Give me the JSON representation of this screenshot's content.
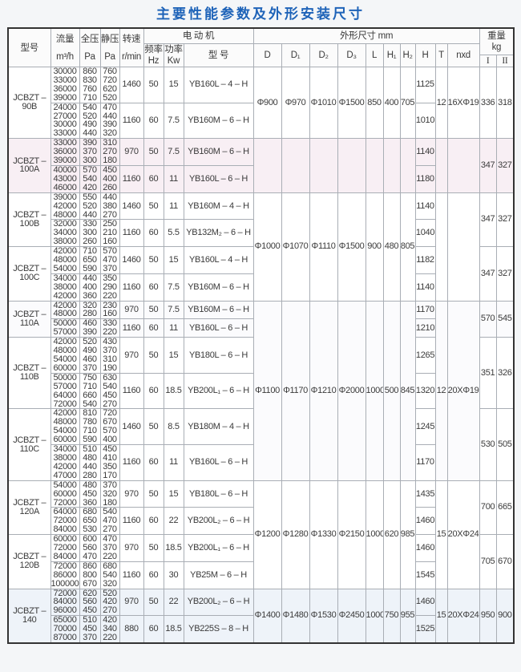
{
  "title": "主要性能参数及外形安装尺寸",
  "header": {
    "model": "型号",
    "flow": "流量",
    "flow_unit": "m³/h",
    "total_pressure": "全压",
    "static_pressure": "静压",
    "pa": "Pa",
    "speed": "转速",
    "speed_unit": "r/min",
    "motor": "电 动 机",
    "freq": "频率",
    "hz": "Hz",
    "power": "功率",
    "kw": "Kw",
    "motor_model": "型  号",
    "dims": "外形尺寸  mm",
    "D": "D",
    "D1": "D₁",
    "D2": "D₂",
    "D3": "D₃",
    "L": "L",
    "H1": "H₁",
    "H2": "H₂",
    "H": "H",
    "T": "T",
    "nxd": "nxd",
    "weight": "重量",
    "kg": "kg",
    "w1": "I",
    "w2": "II"
  },
  "models": [
    {
      "id": "90B",
      "line1": "JCBZT –",
      "line2": "90B",
      "weight": [
        "336",
        "318"
      ],
      "tint": "#ffffff",
      "groups": [
        {
          "flow": [
            "30000",
            "33000",
            "36000",
            "39000"
          ],
          "total": [
            "860",
            "830",
            "760",
            "710"
          ],
          "static": [
            "760",
            "720",
            "620",
            "520"
          ],
          "speed": "1460",
          "hz": "50",
          "kw": "15",
          "motor": "YB160L – 4 – H",
          "H": "1125"
        },
        {
          "flow": [
            "24000",
            "27000",
            "30000",
            "33000"
          ],
          "total": [
            "540",
            "520",
            "490",
            "440"
          ],
          "static": [
            "470",
            "440",
            "390",
            "320"
          ],
          "speed": "1160",
          "hz": "60",
          "kw": "7.5",
          "motor": "YB160M – 6 – H",
          "H": "1010"
        }
      ]
    },
    {
      "id": "100A",
      "line1": "JCBZT –",
      "line2": "100A",
      "weight": [
        "347",
        "327"
      ],
      "tint": "#f8eff4",
      "groups": [
        {
          "flow": [
            "33000",
            "36000",
            "39000"
          ],
          "total": [
            "390",
            "370",
            "300"
          ],
          "static": [
            "310",
            "270",
            "180"
          ],
          "speed": "970",
          "hz": "50",
          "kw": "7.5",
          "motor": "YB160M – 6 – H",
          "H": "1140"
        },
        {
          "flow": [
            "40000",
            "43000",
            "46000"
          ],
          "total": [
            "570",
            "540",
            "420"
          ],
          "static": [
            "450",
            "400",
            "260"
          ],
          "speed": "1160",
          "hz": "60",
          "kw": "11",
          "motor": "YB160L – 6 – H",
          "H": "1180"
        }
      ]
    },
    {
      "id": "100B",
      "line1": "JCBZT –",
      "line2": "100B",
      "weight": [
        "347",
        "327"
      ],
      "tint": "#ffffff",
      "groups": [
        {
          "flow": [
            "39000",
            "42000",
            "48000"
          ],
          "total": [
            "550",
            "520",
            "440"
          ],
          "static": [
            "440",
            "380",
            "270"
          ],
          "speed": "1460",
          "hz": "50",
          "kw": "11",
          "motor": "YB160M – 4 – H",
          "H": "1140"
        },
        {
          "flow": [
            "32000",
            "34000",
            "38000"
          ],
          "total": [
            "330",
            "300",
            "260"
          ],
          "static": [
            "250",
            "210",
            "160"
          ],
          "speed": "1160",
          "hz": "60",
          "kw": "5.5",
          "motor": "YB132M₂ – 6 – H",
          "H": "1040"
        }
      ]
    },
    {
      "id": "100C",
      "line1": "JCBZT –",
      "line2": "100C",
      "weight": [
        "347",
        "327"
      ],
      "tint": "#ffffff",
      "groups": [
        {
          "flow": [
            "42000",
            "48000",
            "54000"
          ],
          "total": [
            "710",
            "650",
            "590"
          ],
          "static": [
            "570",
            "470",
            "370"
          ],
          "speed": "1460",
          "hz": "50",
          "kw": "15",
          "motor": "YB160L – 4 – H",
          "H": "1182"
        },
        {
          "flow": [
            "34000",
            "38000",
            "42000"
          ],
          "total": [
            "440",
            "400",
            "360"
          ],
          "static": [
            "350",
            "290",
            "220"
          ],
          "speed": "1160",
          "hz": "60",
          "kw": "7.5",
          "motor": "YB160M – 6 – H",
          "H": "1140"
        }
      ]
    },
    {
      "id": "110A",
      "line1": "JCBZT –",
      "line2": "110A",
      "weight": [
        "570",
        "545"
      ],
      "tint": "#fbfbfd",
      "groups": [
        {
          "flow": [
            "42000",
            "48000"
          ],
          "total": [
            "320",
            "280"
          ],
          "static": [
            "230",
            "160"
          ],
          "speed": "970",
          "hz": "50",
          "kw": "7.5",
          "motor": "YB160M – 6 – H",
          "H": "1170"
        },
        {
          "flow": [
            "50000",
            "57000"
          ],
          "total": [
            "460",
            "390"
          ],
          "static": [
            "330",
            "220"
          ],
          "speed": "1160",
          "hz": "60",
          "kw": "11",
          "motor": "YB160L – 6 – H",
          "H": "1210"
        }
      ]
    },
    {
      "id": "110B",
      "line1": "JCBZT –",
      "line2": "110B",
      "weight": [
        "351",
        "326"
      ],
      "tint": "#ffffff",
      "groups": [
        {
          "flow": [
            "42000",
            "48000",
            "54000",
            "60000"
          ],
          "total": [
            "520",
            "490",
            "460",
            "370"
          ],
          "static": [
            "430",
            "370",
            "310",
            "190"
          ],
          "speed": "970",
          "hz": "50",
          "kw": "15",
          "motor": "YB180L – 6 – H",
          "H": "1265"
        },
        {
          "flow": [
            "50000",
            "57000",
            "64000",
            "72000"
          ],
          "total": [
            "750",
            "710",
            "660",
            "540"
          ],
          "static": [
            "630",
            "540",
            "450",
            "270"
          ],
          "speed": "1160",
          "hz": "60",
          "kw": "18.5",
          "motor": "YB200L₁ – 6 – H",
          "H": "1320"
        }
      ]
    },
    {
      "id": "110C",
      "line1": "JCBZT –",
      "line2": "110C",
      "weight": [
        "530",
        "505"
      ],
      "tint": "#ffffff",
      "groups": [
        {
          "flow": [
            "42000",
            "48000",
            "54000",
            "60000"
          ],
          "total": [
            "810",
            "780",
            "710",
            "590"
          ],
          "static": [
            "720",
            "670",
            "570",
            "400"
          ],
          "speed": "1460",
          "hz": "50",
          "kw": "8.5",
          "motor": "YB180M – 4 – H",
          "H": "1245"
        },
        {
          "flow": [
            "34000",
            "38000",
            "42000",
            "47000"
          ],
          "total": [
            "510",
            "480",
            "440",
            "280"
          ],
          "static": [
            "450",
            "410",
            "350",
            "170"
          ],
          "speed": "1160",
          "hz": "60",
          "kw": "11",
          "motor": "YB160L – 6 – H",
          "H": "1170"
        }
      ]
    },
    {
      "id": "120A",
      "line1": "JCBZT –",
      "line2": "120A",
      "weight": [
        "700",
        "665"
      ],
      "tint": "#ffffff",
      "groups": [
        {
          "flow": [
            "54000",
            "60000",
            "72000"
          ],
          "total": [
            "480",
            "450",
            "360"
          ],
          "static": [
            "370",
            "320",
            "180"
          ],
          "speed": "970",
          "hz": "50",
          "kw": "15",
          "motor": "YB180L – 6 – H",
          "H": "1435"
        },
        {
          "flow": [
            "64000",
            "72000",
            "84000"
          ],
          "total": [
            "680",
            "650",
            "530"
          ],
          "static": [
            "540",
            "470",
            "270"
          ],
          "speed": "1160",
          "hz": "60",
          "kw": "22",
          "motor": "YB200L₂ – 6 – H",
          "H": "1460"
        }
      ]
    },
    {
      "id": "120B",
      "line1": "JCBZT –",
      "line2": "120B",
      "weight": [
        "705",
        "670"
      ],
      "tint": "#ffffff",
      "groups": [
        {
          "flow": [
            "60000",
            "72000",
            "84000"
          ],
          "total": [
            "600",
            "560",
            "470"
          ],
          "static": [
            "470",
            "370",
            "220"
          ],
          "speed": "970",
          "hz": "50",
          "kw": "18.5",
          "motor": "YB200L₁ – 6 – H",
          "H": "1460"
        },
        {
          "flow": [
            "72000",
            "86000",
            "100000"
          ],
          "total": [
            "860",
            "800",
            "670"
          ],
          "static": [
            "680",
            "540",
            "320"
          ],
          "speed": "1160",
          "hz": "60",
          "kw": "30",
          "motor": "YB25M – 6 – H",
          "H": "1545"
        }
      ]
    },
    {
      "id": "140",
      "line1": "JCBZT –",
      "line2": "140",
      "weight": [
        "950",
        "900"
      ],
      "tint": "#eef3f9",
      "groups": [
        {
          "flow": [
            "72000",
            "84000",
            "96000"
          ],
          "total": [
            "620",
            "560",
            "450"
          ],
          "static": [
            "520",
            "420",
            "270"
          ],
          "speed": "970",
          "hz": "50",
          "kw": "22",
          "motor": "YB200L₂ – 6 – H",
          "H": "1460"
        },
        {
          "flow": [
            "65000",
            "70000",
            "87000"
          ],
          "total": [
            "510",
            "450",
            "370"
          ],
          "static": [
            "420",
            "340",
            "220"
          ],
          "speed": "880",
          "hz": "60",
          "kw": "18.5",
          "motor": "YB225S – 8 – H",
          "H": "1525"
        }
      ]
    }
  ],
  "dimension_blocks": [
    {
      "models": [
        "90B"
      ],
      "D": "Φ900",
      "D1": "Φ970",
      "D2": "Φ1010",
      "D3": "Φ1500",
      "L": "850",
      "H1": "400",
      "H2": "705",
      "T": "12",
      "nxd": "16XΦ19"
    },
    {
      "models": [
        "100A"
      ],
      "D": "",
      "D1": "",
      "D2": "",
      "D3": "",
      "L": "",
      "H1": "",
      "H2": "",
      "T": "",
      "nxd": ""
    },
    {
      "models": [
        "100B",
        "100C"
      ],
      "D": "Φ1000",
      "D1": "Φ1070",
      "D2": "Φ1110",
      "D3": "Φ1500",
      "L": "900",
      "H1": "480",
      "H2": "805",
      "T": "",
      "nxd": ""
    },
    {
      "models": [
        "110A",
        "110B",
        "110C"
      ],
      "D": "Φ1100",
      "D1": "Φ1170",
      "D2": "Φ1210",
      "D3": "Φ2000",
      "L": "1000",
      "H1": "500",
      "H2": "845",
      "T": "12",
      "nxd": "20XΦ19"
    },
    {
      "models": [
        "120A",
        "120B"
      ],
      "D": "Φ1200",
      "D1": "Φ1280",
      "D2": "Φ1330",
      "D3": "Φ2150",
      "L": "1000",
      "H1": "620",
      "H2": "985",
      "T": "15",
      "nxd": "20XΦ24"
    },
    {
      "models": [
        "140"
      ],
      "D": "Φ1400",
      "D1": "Φ1480",
      "D2": "Φ1530",
      "D3": "Φ2450",
      "L": "1000",
      "H1": "750",
      "H2": "955",
      "T": "15",
      "nxd": "20XΦ24"
    }
  ]
}
